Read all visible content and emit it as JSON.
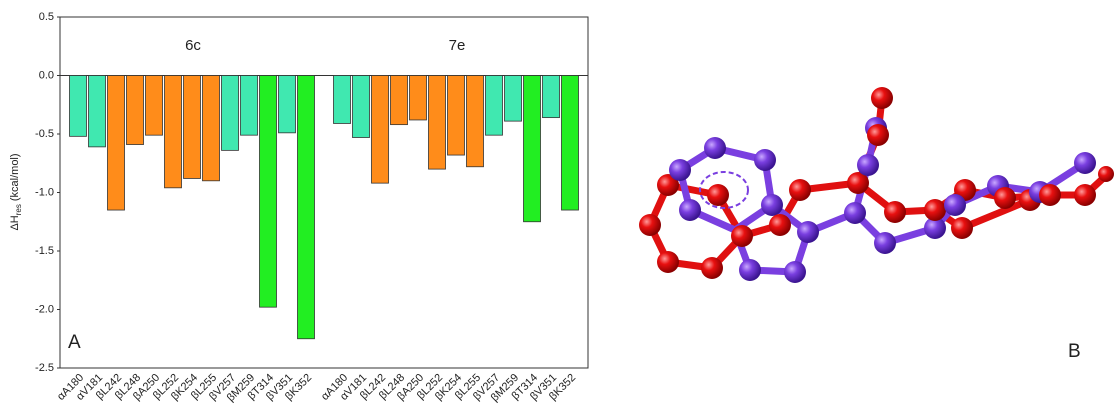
{
  "chart_data": {
    "type": "bar",
    "categories": [
      "αA180",
      "αV181",
      "βL242",
      "βL248",
      "βA250",
      "βL252",
      "βK254",
      "βL255",
      "βV257",
      "βM259",
      "βT314",
      "βV351",
      "βK352"
    ],
    "series": [
      {
        "name": "6c",
        "values": [
          -0.52,
          -0.61,
          -1.15,
          -0.59,
          -0.51,
          -0.96,
          -0.88,
          -0.9,
          -0.64,
          -0.51,
          -1.98,
          -0.49,
          -2.25
        ],
        "colors": [
          "#40e8b0",
          "#40e8b0",
          "#ff8c1a",
          "#ff8c1a",
          "#ff8c1a",
          "#ff8c1a",
          "#ff8c1a",
          "#ff8c1a",
          "#40e8b0",
          "#40e8b0",
          "#22ee22",
          "#40e8b0",
          "#22ee22"
        ]
      },
      {
        "name": "7e",
        "values": [
          -0.41,
          -0.53,
          -0.92,
          -0.42,
          -0.38,
          -0.8,
          -0.68,
          -0.78,
          -0.51,
          -0.39,
          -1.25,
          -0.36,
          -1.15
        ],
        "colors": [
          "#40e8b0",
          "#40e8b0",
          "#ff8c1a",
          "#ff8c1a",
          "#ff8c1a",
          "#ff8c1a",
          "#ff8c1a",
          "#ff8c1a",
          "#40e8b0",
          "#40e8b0",
          "#22ee22",
          "#40e8b0",
          "#22ee22"
        ]
      }
    ],
    "y_label": {
      "main": "ΔH",
      "sub": "res",
      "unit": "(kcal/mol)"
    },
    "ylim": [
      -2.5,
      0.5
    ],
    "yticks": [
      0.5,
      {
        "value": 0,
        "label": "0.0"
      },
      -0.5,
      {
        "value": -1,
        "label": "-1.0"
      },
      -1.5,
      {
        "value": -2,
        "label": "-2.0"
      },
      -2.5
    ],
    "panel_label": "A"
  },
  "panel_b_label": "B"
}
